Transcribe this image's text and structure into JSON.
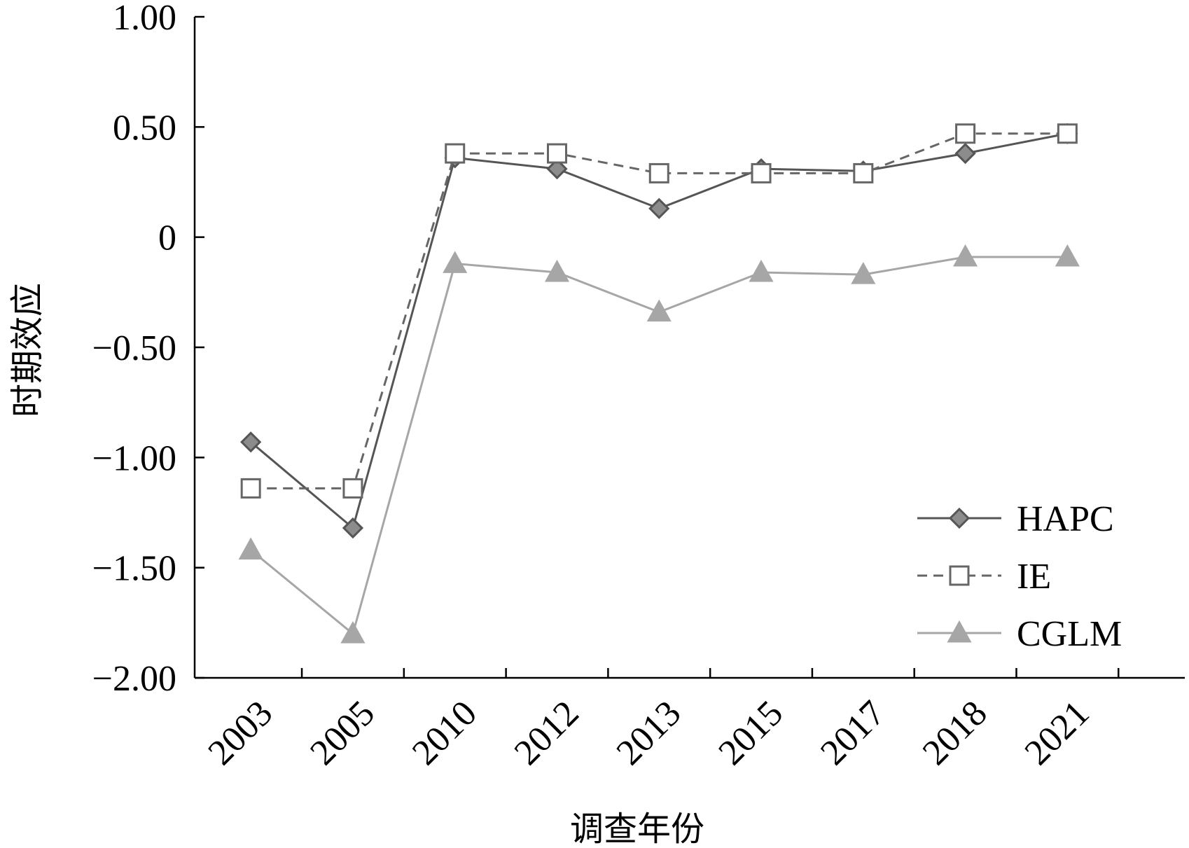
{
  "chart_data": {
    "type": "line",
    "title": "",
    "xlabel": "调查年份",
    "ylabel": "时期效应",
    "categories": [
      "2003",
      "2005",
      "2010",
      "2012",
      "2013",
      "2015",
      "2017",
      "2018",
      "2021"
    ],
    "ylim": [
      -2.0,
      1.0
    ],
    "yticks": [
      -2.0,
      -1.5,
      -1.0,
      -0.5,
      0,
      0.5,
      1.0
    ],
    "ytick_labels": [
      "−2.00",
      "−1.50",
      "−1.00",
      "−0.50",
      "0",
      "0.50",
      "1.00"
    ],
    "grid": false,
    "legend_position": "bottom-right",
    "series": [
      {
        "name": "HAPC",
        "values": [
          -0.93,
          -1.32,
          0.36,
          0.31,
          0.13,
          0.31,
          0.3,
          0.38,
          0.47
        ],
        "color": "#555555",
        "marker_fill": "#8c8c8c",
        "marker": "diamond",
        "dash": "solid"
      },
      {
        "name": "IE",
        "values": [
          -1.14,
          -1.14,
          0.38,
          0.38,
          0.29,
          0.29,
          0.29,
          0.47,
          0.47
        ],
        "color": "#666666",
        "marker_fill": "#ffffff",
        "marker": "square",
        "dash": "dashed"
      },
      {
        "name": "CGLM",
        "values": [
          -1.42,
          -1.8,
          -0.12,
          -0.16,
          -0.34,
          -0.16,
          -0.17,
          -0.09,
          -0.09
        ],
        "color": "#a6a6a6",
        "marker_fill": "#a6a6a6",
        "marker": "triangle",
        "dash": "solid"
      }
    ]
  }
}
